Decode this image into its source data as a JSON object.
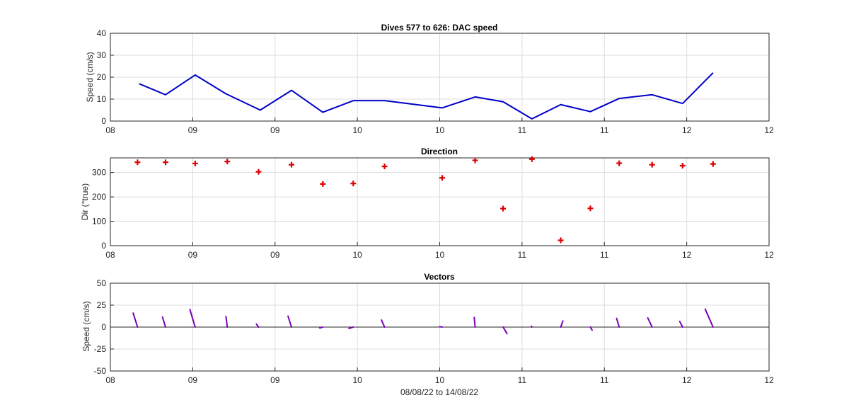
{
  "figure": {
    "xlabel": "08/08/22 to 14/08/22",
    "x_tick_labels": [
      "08",
      "09",
      "09",
      "10",
      "10",
      "11",
      "11",
      "12",
      "12"
    ]
  },
  "chart_data": [
    {
      "type": "line",
      "title": "Dives 577 to 626: DAC speed",
      "ylabel": "Speed (cm/s)",
      "xlim": [
        0,
        8
      ],
      "ylim": [
        0,
        40
      ],
      "yticks": [
        0,
        10,
        20,
        30,
        40
      ],
      "grid": true,
      "color": "#0000c8",
      "x": [
        0.35,
        0.67,
        1.03,
        1.4,
        1.82,
        2.2,
        2.58,
        2.95,
        3.33,
        4.03,
        4.43,
        4.77,
        5.12,
        5.47,
        5.83,
        6.18,
        6.58,
        6.95,
        7.32
      ],
      "values": [
        17,
        12,
        21,
        12.5,
        5,
        14,
        4,
        9.3,
        9.3,
        6,
        11,
        8.8,
        1,
        7.5,
        4.3,
        10.3,
        12,
        8,
        22
      ]
    },
    {
      "type": "scatter",
      "title": "Direction",
      "ylabel": "Dir (°true)",
      "xlim": [
        0,
        8
      ],
      "ylim": [
        0,
        360
      ],
      "yticks": [
        0,
        100,
        200,
        300
      ],
      "grid": true,
      "color": "#dd0000",
      "x": [
        0.33,
        0.67,
        1.03,
        1.42,
        1.8,
        2.2,
        2.58,
        2.95,
        3.33,
        4.03,
        4.43,
        4.77,
        5.12,
        5.47,
        5.83,
        6.18,
        6.58,
        6.95,
        7.32
      ],
      "values": [
        342,
        342,
        337,
        345,
        303,
        332,
        253,
        255,
        325,
        278,
        350,
        152,
        355,
        22,
        153,
        338,
        332,
        328,
        335
      ]
    },
    {
      "type": "quiver",
      "title": "Vectors",
      "ylabel": "Speed (cm/s)",
      "xlim": [
        0,
        8
      ],
      "ylim": [
        -50,
        50
      ],
      "yticks": [
        -50,
        -25,
        0,
        25,
        50
      ],
      "grid": true,
      "color": "#7a00b4",
      "x": [
        0.33,
        0.67,
        1.03,
        1.42,
        1.8,
        2.2,
        2.58,
        2.95,
        3.33,
        4.03,
        4.43,
        4.77,
        5.12,
        5.47,
        5.83,
        6.18,
        6.58,
        6.95,
        7.32
      ],
      "u": [
        -5,
        -3.5,
        -6,
        -1.5,
        -2.5,
        -4,
        -3.5,
        -5,
        -3.5,
        -3,
        -1,
        4.5,
        -0.5,
        2.5,
        2,
        -3,
        -5,
        -3.3,
        -9
      ],
      "v": [
        16,
        11.5,
        20,
        12,
        3.5,
        12.5,
        -1,
        -1.5,
        8,
        0.5,
        11,
        -7.5,
        1,
        7,
        -3.5,
        10,
        10.5,
        6.5,
        20.5
      ]
    }
  ]
}
